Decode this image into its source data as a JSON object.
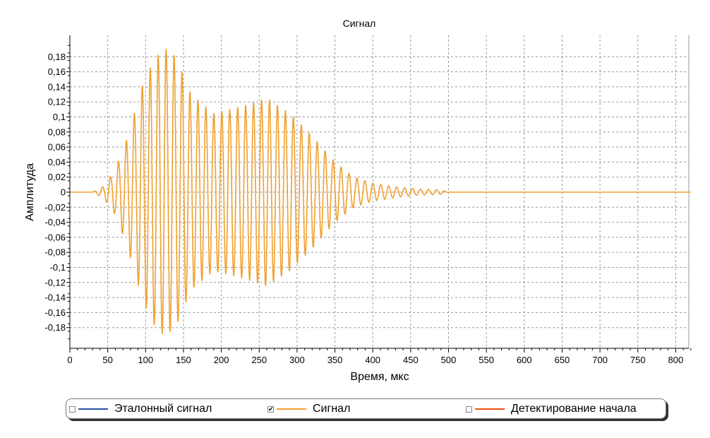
{
  "chart_data": {
    "type": "line",
    "title": "Сигнал",
    "xlabel": "Время, мкс",
    "ylabel": "Амплитуда",
    "xlim": [
      0,
      820
    ],
    "ylim": [
      -0.2,
      0.2
    ],
    "x_ticks": [
      "0",
      "50",
      "100",
      "150",
      "200",
      "250",
      "300",
      "350",
      "400",
      "450",
      "500",
      "550",
      "600",
      "650",
      "700",
      "750",
      "800"
    ],
    "y_ticks": [
      "0,18",
      "0,16",
      "0,14",
      "0,12",
      "0,1",
      "0,08",
      "0,06",
      "0,04",
      "0,02",
      "0",
      "-0,02",
      "-0,04",
      "-0,06",
      "-0,08",
      "-0,1",
      "-0,12",
      "-0,14",
      "-0,16",
      "-0,18"
    ],
    "grid": true,
    "series": [
      {
        "name": "Сигнал",
        "color": "#f0a030",
        "visible": true,
        "sample_period_us": 0.5,
        "carrier_period_us": 10.5,
        "envelope": {
          "t": [
            0,
            30,
            45,
            60,
            75,
            95,
            110,
            125,
            140,
            160,
            190,
            230,
            260,
            290,
            320,
            350,
            375,
            400,
            430,
            460,
            490,
            500,
            820
          ],
          "amp": [
            0,
            0,
            0.008,
            0.03,
            0.07,
            0.14,
            0.175,
            0.192,
            0.18,
            0.13,
            0.105,
            0.115,
            0.125,
            0.105,
            0.075,
            0.04,
            0.02,
            0.012,
            0.007,
            0.004,
            0.003,
            0,
            0
          ]
        }
      }
    ]
  },
  "legend": {
    "items": [
      {
        "label": "Эталонный сигнал",
        "color": "#2850a0",
        "checked": false
      },
      {
        "label": "Сигнал",
        "color": "#f0a030",
        "checked": true
      },
      {
        "label": "Детектирование начала",
        "color": "#f05010",
        "checked": false
      }
    ]
  }
}
